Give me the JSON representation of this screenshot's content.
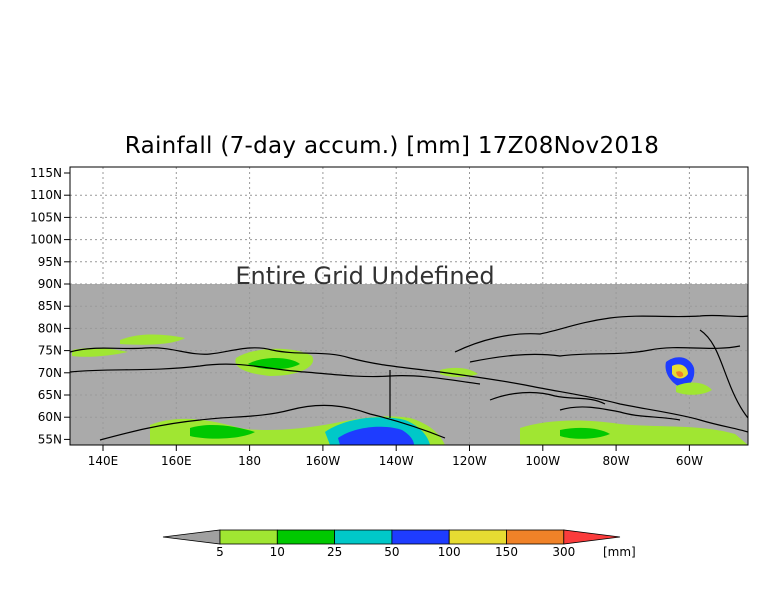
{
  "title": "Rainfall (7-day accum.) [mm] 17Z08Nov2018",
  "undefined_label": "Entire Grid Undefined",
  "lat_labels": [
    "115N",
    "110N",
    "105N",
    "100N",
    "95N",
    "90N",
    "85N",
    "80N",
    "75N",
    "70N",
    "65N",
    "60N",
    "55N"
  ],
  "lon_labels": [
    "140E",
    "160E",
    "180",
    "160W",
    "140W",
    "120W",
    "100W",
    "80W",
    "60W"
  ],
  "colorbar": {
    "ticks": [
      "5",
      "10",
      "25",
      "50",
      "100",
      "150",
      "300"
    ],
    "unit": "[mm]",
    "colors": [
      "#a0a0a0",
      "#a0e632",
      "#00c800",
      "#00c8c8",
      "#1e3cff",
      "#e6dc32",
      "#f08228",
      "#fa3c3c"
    ]
  },
  "colors": {
    "undefined_fill": "#aaaaaa",
    "coast": "#000000",
    "grid": "#999999"
  }
}
